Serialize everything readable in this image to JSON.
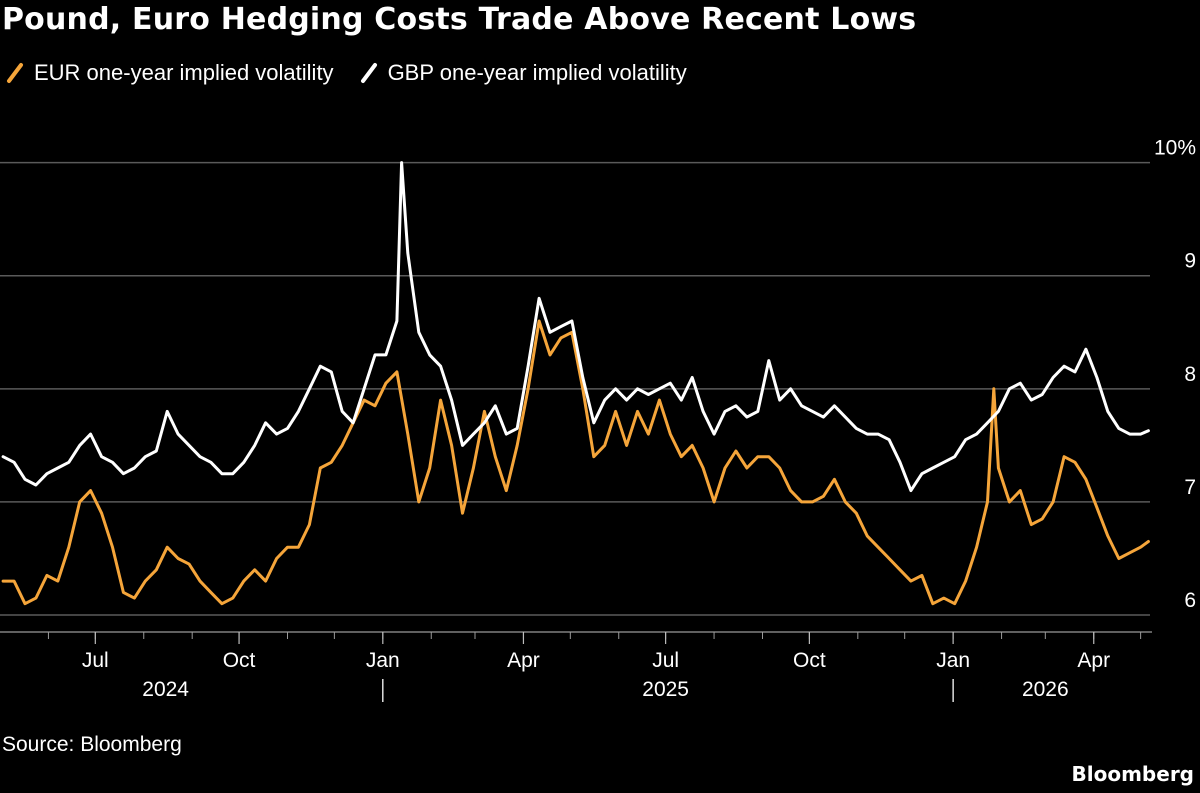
{
  "header": {
    "title": "Pound, Euro Hedging Costs Trade Above Recent Lows"
  },
  "footer": {
    "source": "Source: Bloomberg",
    "brand": "Bloomberg"
  },
  "colors": {
    "background": "#000000",
    "eur": "#f5a53a",
    "gbp": "#ffffff",
    "grid": "#5a5a5a"
  },
  "chart_data": {
    "type": "line",
    "title": "Pound, Euro Hedging Costs Trade Above Recent Lows",
    "xlabel": "",
    "ylabel": "",
    "ylim": [
      5.85,
      10.2
    ],
    "yticks": [
      6,
      7,
      8,
      9,
      10
    ],
    "ytick_labels": [
      "6",
      "7",
      "8",
      "9",
      "10%"
    ],
    "x_range": [
      "2024-05-01",
      "2026-05-07"
    ],
    "grid": true,
    "legend_placement": "top-left",
    "xticks": [
      {
        "date": "2024-07-01",
        "label": "Jul"
      },
      {
        "date": "2024-10-01",
        "label": "Oct"
      },
      {
        "date": "2025-01-01",
        "label": "Jan"
      },
      {
        "date": "2025-04-01",
        "label": "Apr"
      },
      {
        "date": "2025-07-01",
        "label": "Jul"
      },
      {
        "date": "2025-10-01",
        "label": "Oct"
      },
      {
        "date": "2026-01-01",
        "label": "Jan"
      },
      {
        "date": "2026-04-01",
        "label": "Apr"
      }
    ],
    "year_labels": [
      {
        "date": "2024-08-15",
        "label": "2024"
      },
      {
        "date": "2025-07-01",
        "label": "2025"
      },
      {
        "date": "2026-03-01",
        "label": "2026"
      }
    ],
    "year_separators": [
      "2025-01-01",
      "2026-01-01"
    ],
    "series": [
      {
        "name": "EUR one-year implied volatility",
        "color": "#f5a53a",
        "points": [
          [
            "2024-05-03",
            6.3
          ],
          [
            "2024-05-10",
            6.3
          ],
          [
            "2024-05-17",
            6.1
          ],
          [
            "2024-05-24",
            6.15
          ],
          [
            "2024-05-31",
            6.35
          ],
          [
            "2024-06-07",
            6.3
          ],
          [
            "2024-06-14",
            6.6
          ],
          [
            "2024-06-21",
            7.0
          ],
          [
            "2024-06-28",
            7.1
          ],
          [
            "2024-07-05",
            6.9
          ],
          [
            "2024-07-12",
            6.6
          ],
          [
            "2024-07-19",
            6.2
          ],
          [
            "2024-07-26",
            6.15
          ],
          [
            "2024-08-02",
            6.3
          ],
          [
            "2024-08-09",
            6.4
          ],
          [
            "2024-08-16",
            6.6
          ],
          [
            "2024-08-23",
            6.5
          ],
          [
            "2024-08-30",
            6.45
          ],
          [
            "2024-09-06",
            6.3
          ],
          [
            "2024-09-13",
            6.2
          ],
          [
            "2024-09-20",
            6.1
          ],
          [
            "2024-09-27",
            6.15
          ],
          [
            "2024-10-04",
            6.3
          ],
          [
            "2024-10-11",
            6.4
          ],
          [
            "2024-10-18",
            6.3
          ],
          [
            "2024-10-25",
            6.5
          ],
          [
            "2024-11-01",
            6.6
          ],
          [
            "2024-11-08",
            6.6
          ],
          [
            "2024-11-15",
            6.8
          ],
          [
            "2024-11-22",
            7.3
          ],
          [
            "2024-11-29",
            7.35
          ],
          [
            "2024-12-06",
            7.5
          ],
          [
            "2024-12-13",
            7.7
          ],
          [
            "2024-12-20",
            7.9
          ],
          [
            "2024-12-27",
            7.85
          ],
          [
            "2025-01-03",
            8.05
          ],
          [
            "2025-01-10",
            8.15
          ],
          [
            "2025-01-17",
            7.6
          ],
          [
            "2025-01-24",
            7.0
          ],
          [
            "2025-01-31",
            7.3
          ],
          [
            "2025-02-07",
            7.9
          ],
          [
            "2025-02-14",
            7.5
          ],
          [
            "2025-02-21",
            6.9
          ],
          [
            "2025-02-28",
            7.3
          ],
          [
            "2025-03-07",
            7.8
          ],
          [
            "2025-03-14",
            7.4
          ],
          [
            "2025-03-21",
            7.1
          ],
          [
            "2025-03-28",
            7.5
          ],
          [
            "2025-04-04",
            8.0
          ],
          [
            "2025-04-11",
            8.6
          ],
          [
            "2025-04-18",
            8.3
          ],
          [
            "2025-04-25",
            8.45
          ],
          [
            "2025-05-02",
            8.5
          ],
          [
            "2025-05-09",
            8.0
          ],
          [
            "2025-05-16",
            7.4
          ],
          [
            "2025-05-23",
            7.5
          ],
          [
            "2025-05-30",
            7.8
          ],
          [
            "2025-06-06",
            7.5
          ],
          [
            "2025-06-13",
            7.8
          ],
          [
            "2025-06-20",
            7.6
          ],
          [
            "2025-06-27",
            7.9
          ],
          [
            "2025-07-04",
            7.6
          ],
          [
            "2025-07-11",
            7.4
          ],
          [
            "2025-07-18",
            7.5
          ],
          [
            "2025-07-25",
            7.3
          ],
          [
            "2025-08-01",
            7.0
          ],
          [
            "2025-08-08",
            7.3
          ],
          [
            "2025-08-15",
            7.45
          ],
          [
            "2025-08-22",
            7.3
          ],
          [
            "2025-08-29",
            7.4
          ],
          [
            "2025-09-05",
            7.4
          ],
          [
            "2025-09-12",
            7.3
          ],
          [
            "2025-09-19",
            7.1
          ],
          [
            "2025-09-26",
            7.0
          ],
          [
            "2025-10-03",
            7.0
          ],
          [
            "2025-10-10",
            7.05
          ],
          [
            "2025-10-17",
            7.2
          ],
          [
            "2025-10-24",
            7.0
          ],
          [
            "2025-10-31",
            6.9
          ],
          [
            "2025-11-07",
            6.7
          ],
          [
            "2025-11-14",
            6.6
          ],
          [
            "2025-11-21",
            6.5
          ],
          [
            "2025-11-28",
            6.4
          ],
          [
            "2025-12-05",
            6.3
          ],
          [
            "2025-12-12",
            6.35
          ],
          [
            "2025-12-19",
            6.1
          ],
          [
            "2025-12-26",
            6.15
          ],
          [
            "2026-01-02",
            6.1
          ],
          [
            "2026-01-09",
            6.3
          ],
          [
            "2026-01-16",
            6.6
          ],
          [
            "2026-01-23",
            7.0
          ],
          [
            "2026-01-27",
            8.0
          ],
          [
            "2026-01-30",
            7.3
          ],
          [
            "2026-02-06",
            7.0
          ],
          [
            "2026-02-13",
            7.1
          ],
          [
            "2026-02-20",
            6.8
          ],
          [
            "2026-02-27",
            6.85
          ],
          [
            "2026-03-06",
            7.0
          ],
          [
            "2026-03-13",
            7.4
          ],
          [
            "2026-03-20",
            7.35
          ],
          [
            "2026-03-27",
            7.2
          ],
          [
            "2026-04-03",
            6.95
          ],
          [
            "2026-04-10",
            6.7
          ],
          [
            "2026-04-17",
            6.5
          ],
          [
            "2026-04-24",
            6.55
          ],
          [
            "2026-05-01",
            6.6
          ],
          [
            "2026-05-06",
            6.65
          ]
        ]
      },
      {
        "name": "GBP one-year implied volatility",
        "color": "#ffffff",
        "points": [
          [
            "2024-05-03",
            7.4
          ],
          [
            "2024-05-10",
            7.35
          ],
          [
            "2024-05-17",
            7.2
          ],
          [
            "2024-05-24",
            7.15
          ],
          [
            "2024-05-31",
            7.25
          ],
          [
            "2024-06-07",
            7.3
          ],
          [
            "2024-06-14",
            7.35
          ],
          [
            "2024-06-21",
            7.5
          ],
          [
            "2024-06-28",
            7.6
          ],
          [
            "2024-07-05",
            7.4
          ],
          [
            "2024-07-12",
            7.35
          ],
          [
            "2024-07-19",
            7.25
          ],
          [
            "2024-07-26",
            7.3
          ],
          [
            "2024-08-02",
            7.4
          ],
          [
            "2024-08-09",
            7.45
          ],
          [
            "2024-08-16",
            7.8
          ],
          [
            "2024-08-23",
            7.6
          ],
          [
            "2024-08-30",
            7.5
          ],
          [
            "2024-09-06",
            7.4
          ],
          [
            "2024-09-13",
            7.35
          ],
          [
            "2024-09-20",
            7.25
          ],
          [
            "2024-09-27",
            7.25
          ],
          [
            "2024-10-04",
            7.35
          ],
          [
            "2024-10-11",
            7.5
          ],
          [
            "2024-10-18",
            7.7
          ],
          [
            "2024-10-25",
            7.6
          ],
          [
            "2024-11-01",
            7.65
          ],
          [
            "2024-11-08",
            7.8
          ],
          [
            "2024-11-15",
            8.0
          ],
          [
            "2024-11-22",
            8.2
          ],
          [
            "2024-11-29",
            8.15
          ],
          [
            "2024-12-06",
            7.8
          ],
          [
            "2024-12-13",
            7.7
          ],
          [
            "2024-12-20",
            8.0
          ],
          [
            "2024-12-27",
            8.3
          ],
          [
            "2025-01-03",
            8.3
          ],
          [
            "2025-01-10",
            8.6
          ],
          [
            "2025-01-13",
            10.0
          ],
          [
            "2025-01-17",
            9.2
          ],
          [
            "2025-01-24",
            8.5
          ],
          [
            "2025-01-31",
            8.3
          ],
          [
            "2025-02-07",
            8.2
          ],
          [
            "2025-02-14",
            7.9
          ],
          [
            "2025-02-21",
            7.5
          ],
          [
            "2025-02-28",
            7.6
          ],
          [
            "2025-03-07",
            7.7
          ],
          [
            "2025-03-14",
            7.85
          ],
          [
            "2025-03-21",
            7.6
          ],
          [
            "2025-03-28",
            7.65
          ],
          [
            "2025-04-04",
            8.2
          ],
          [
            "2025-04-11",
            8.8
          ],
          [
            "2025-04-18",
            8.5
          ],
          [
            "2025-04-25",
            8.55
          ],
          [
            "2025-05-02",
            8.6
          ],
          [
            "2025-05-09",
            8.1
          ],
          [
            "2025-05-16",
            7.7
          ],
          [
            "2025-05-23",
            7.9
          ],
          [
            "2025-05-30",
            8.0
          ],
          [
            "2025-06-06",
            7.9
          ],
          [
            "2025-06-13",
            8.0
          ],
          [
            "2025-06-20",
            7.95
          ],
          [
            "2025-06-27",
            8.0
          ],
          [
            "2025-07-04",
            8.05
          ],
          [
            "2025-07-11",
            7.9
          ],
          [
            "2025-07-18",
            8.1
          ],
          [
            "2025-07-25",
            7.8
          ],
          [
            "2025-08-01",
            7.6
          ],
          [
            "2025-08-08",
            7.8
          ],
          [
            "2025-08-15",
            7.85
          ],
          [
            "2025-08-22",
            7.75
          ],
          [
            "2025-08-29",
            7.8
          ],
          [
            "2025-09-05",
            8.25
          ],
          [
            "2025-09-12",
            7.9
          ],
          [
            "2025-09-19",
            8.0
          ],
          [
            "2025-09-26",
            7.85
          ],
          [
            "2025-10-03",
            7.8
          ],
          [
            "2025-10-10",
            7.75
          ],
          [
            "2025-10-17",
            7.85
          ],
          [
            "2025-10-24",
            7.75
          ],
          [
            "2025-10-31",
            7.65
          ],
          [
            "2025-11-07",
            7.6
          ],
          [
            "2025-11-14",
            7.6
          ],
          [
            "2025-11-21",
            7.55
          ],
          [
            "2025-11-28",
            7.35
          ],
          [
            "2025-12-05",
            7.1
          ],
          [
            "2025-12-12",
            7.25
          ],
          [
            "2025-12-19",
            7.3
          ],
          [
            "2025-12-26",
            7.35
          ],
          [
            "2026-01-02",
            7.4
          ],
          [
            "2026-01-09",
            7.55
          ],
          [
            "2026-01-16",
            7.6
          ],
          [
            "2026-01-23",
            7.7
          ],
          [
            "2026-01-30",
            7.8
          ],
          [
            "2026-02-06",
            8.0
          ],
          [
            "2026-02-13",
            8.05
          ],
          [
            "2026-02-20",
            7.9
          ],
          [
            "2026-02-27",
            7.95
          ],
          [
            "2026-03-06",
            8.1
          ],
          [
            "2026-03-13",
            8.2
          ],
          [
            "2026-03-20",
            8.15
          ],
          [
            "2026-03-27",
            8.35
          ],
          [
            "2026-04-03",
            8.1
          ],
          [
            "2026-04-10",
            7.8
          ],
          [
            "2026-04-17",
            7.65
          ],
          [
            "2026-04-24",
            7.6
          ],
          [
            "2026-05-01",
            7.6
          ],
          [
            "2026-05-06",
            7.63
          ]
        ]
      }
    ]
  }
}
